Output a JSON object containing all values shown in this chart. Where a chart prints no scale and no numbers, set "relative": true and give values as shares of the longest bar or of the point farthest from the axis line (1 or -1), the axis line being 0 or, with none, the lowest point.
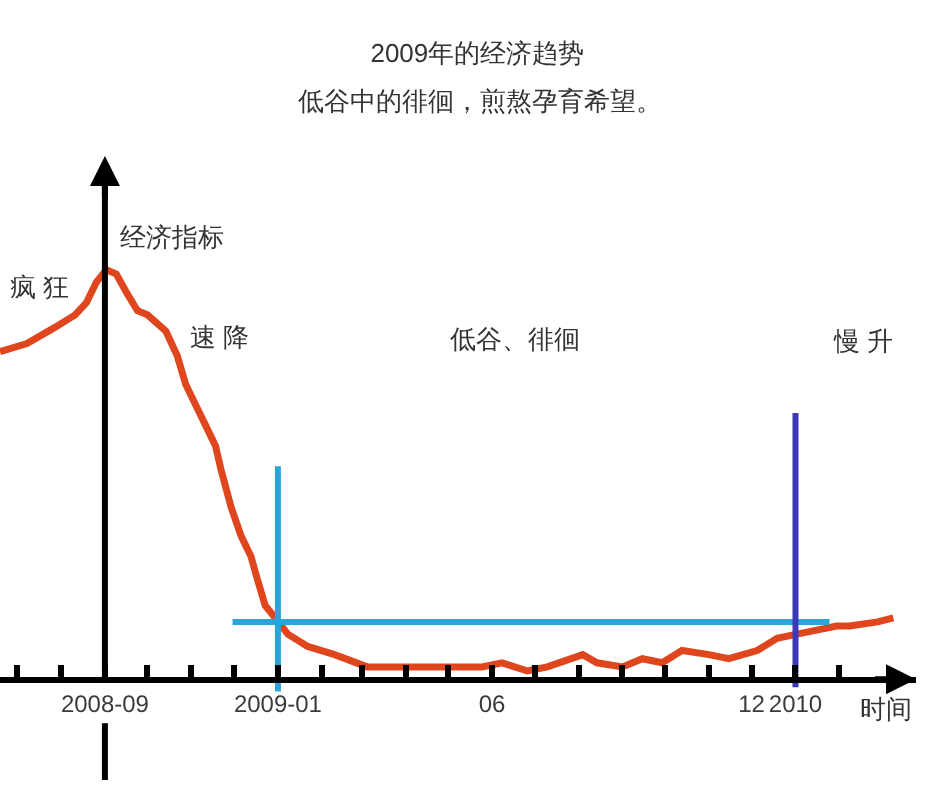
{
  "chart_data": {
    "type": "line",
    "title": "2009年的经济趋势",
    "subtitle": "低谷中的徘徊，煎熬孕育希望。",
    "xlabel": "时间",
    "ylabel": "经济指标",
    "relative": true,
    "xlim": [
      "2008-06-19",
      "2010-03-27"
    ],
    "xticks": [
      {
        "value": "2008-07",
        "label": null
      },
      {
        "value": "2008-08",
        "label": null
      },
      {
        "value": "2008-09",
        "label": "2008-09"
      },
      {
        "value": "2008-10",
        "label": null
      },
      {
        "value": "2008-11",
        "label": null
      },
      {
        "value": "2008-12",
        "label": null
      },
      {
        "value": "2009-01",
        "label": "2009-01"
      },
      {
        "value": "2009-02",
        "label": null
      },
      {
        "value": "2009-03",
        "label": null
      },
      {
        "value": "2009-04",
        "label": null
      },
      {
        "value": "2009-05",
        "label": null
      },
      {
        "value": "2009-06",
        "label": "06"
      },
      {
        "value": "2009-07",
        "label": null
      },
      {
        "value": "2009-08",
        "label": null
      },
      {
        "value": "2009-09",
        "label": null
      },
      {
        "value": "2009-10",
        "label": null
      },
      {
        "value": "2009-11",
        "label": null
      },
      {
        "value": "2009-12",
        "label": "12"
      },
      {
        "value": "2010-01",
        "label": "2010"
      },
      {
        "value": "2010-02",
        "label": null
      }
    ],
    "series": [
      {
        "color": "#e0461e",
        "x": [
          "2008-06-19",
          "2008-07-08",
          "2008-07-28",
          "2008-08-11",
          "2008-08-19",
          "2008-08-26",
          "2008-09-02",
          "2008-09-09",
          "2008-09-17",
          "2008-09-24",
          "2008-10-01",
          "2008-10-14",
          "2008-10-22",
          "2008-10-28",
          "2008-11-04",
          "2008-11-11",
          "2008-11-18",
          "2008-11-22",
          "2008-11-29",
          "2008-12-06",
          "2008-12-13",
          "2008-12-17",
          "2008-12-23",
          "2008-12-30",
          "2009-01-08",
          "2009-01-22",
          "2009-02-10",
          "2009-03-05",
          "2009-03-29",
          "2009-04-26",
          "2009-05-25",
          "2009-06-08",
          "2009-06-26",
          "2009-07-10",
          "2009-08-04",
          "2009-08-14",
          "2009-09-01",
          "2009-09-15",
          "2009-09-29",
          "2009-10-13",
          "2009-11-01",
          "2009-11-15",
          "2009-12-05",
          "2009-12-19",
          "2010-01-02",
          "2010-01-16",
          "2010-01-30",
          "2010-02-08",
          "2010-02-28",
          "2010-03-11"
        ],
        "values": [
          0.8,
          0.82,
          0.86,
          0.89,
          0.92,
          0.97,
          1.0,
          0.99,
          0.94,
          0.9,
          0.89,
          0.85,
          0.79,
          0.72,
          0.67,
          0.62,
          0.57,
          0.51,
          0.42,
          0.35,
          0.3,
          0.25,
          0.18,
          0.15,
          0.11,
          0.08,
          0.06,
          0.03,
          0.03,
          0.03,
          0.03,
          0.04,
          0.02,
          0.03,
          0.06,
          0.04,
          0.03,
          0.05,
          0.04,
          0.07,
          0.06,
          0.05,
          0.07,
          0.1,
          0.11,
          0.12,
          0.13,
          0.13,
          0.14,
          0.15
        ]
      },
      {
        "color": "#2aa5dc",
        "x": [
          "2008-11-30",
          "2010-01-25"
        ],
        "values": [
          0.14,
          0.14
        ]
      },
      {
        "color": "#2aa5dc",
        "x": [
          "2009-01",
          "2009-01"
        ],
        "values": [
          0.52,
          -0.03
        ]
      },
      {
        "color": "#3a3ab8",
        "x": [
          "2010-01",
          "2010-01"
        ],
        "values": [
          0.65,
          -0.02
        ]
      }
    ],
    "ref_lines": [
      {
        "axis": "x",
        "value": "2008-09",
        "color": "#000000"
      }
    ],
    "annotations": [
      "疯 狂",
      "速 降",
      "低谷、徘徊",
      "慢 升"
    ],
    "line_style": "solid"
  }
}
